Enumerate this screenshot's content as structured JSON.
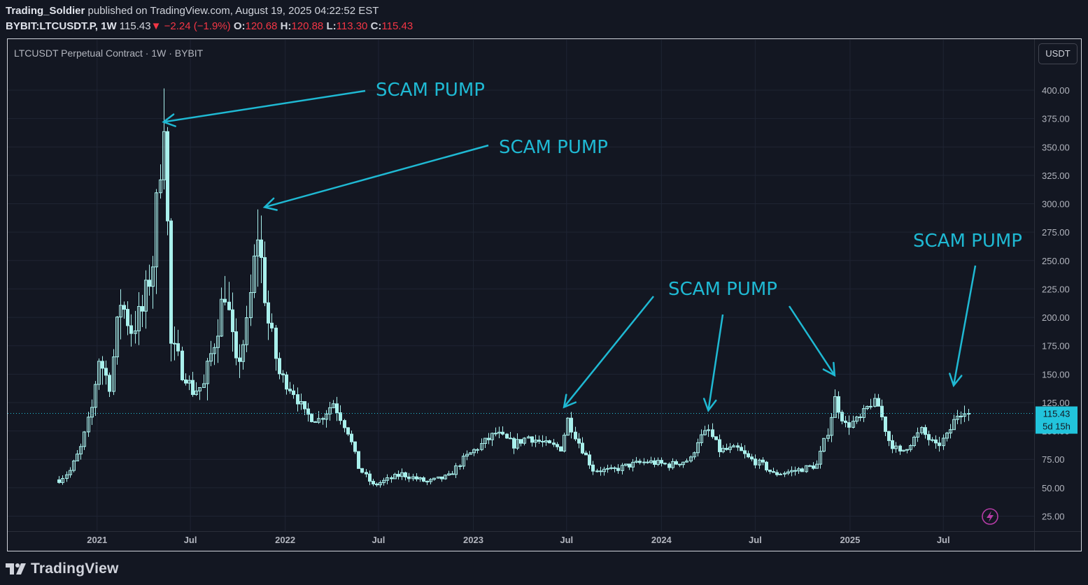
{
  "header": {
    "author": "Trading_Soldier",
    "published_text": "published on TradingView.com, August 19, 2025 04:22:52 EST",
    "symbol": "BYBIT:LTCUSDT.P, 1W",
    "last": "115.43",
    "change_arrow": "▼",
    "change": "−2.24 (−1.9%)",
    "o_label": "O:",
    "o": "120.68",
    "h_label": "H:",
    "h": "120.88",
    "l_label": "L:",
    "l": "113.30",
    "c_label": "C:",
    "c": "115.43"
  },
  "chart_legend": "LTCUSDT Perpetual Contract · 1W · BYBIT",
  "unit_button": "USDT",
  "price_label": {
    "value": "115.43",
    "countdown": "5d 15h"
  },
  "footer": {
    "brand": "TradingView"
  },
  "colors": {
    "background": "#131722",
    "candle": "#a9f0ec",
    "annotation": "#1fb9d3",
    "price_tag": "#22c4dc",
    "axis_text": "#b2b5be",
    "grid": "#1f2433",
    "bolt": "#b63ca7"
  },
  "chart_data": {
    "type": "candlestick",
    "title": "LTCUSDT Perpetual Contract · 1W · BYBIT",
    "ylim": [
      15,
      420
    ],
    "y_ticks": [
      400,
      375,
      350,
      325,
      300,
      275,
      250,
      225,
      200,
      175,
      150,
      125,
      100,
      75,
      50,
      25
    ],
    "y_tick_labels": [
      "400.00",
      "375.00",
      "350.00",
      "325.00",
      "300.00",
      "275.00",
      "250.00",
      "225.00",
      "200.00",
      "175.00",
      "150.00",
      "125.00",
      "100.00",
      "75.00",
      "50.00",
      "25.00"
    ],
    "x_ticks": [
      {
        "label": "2021",
        "date": "2021-01-01"
      },
      {
        "label": "Jul",
        "date": "2021-07-01"
      },
      {
        "label": "2022",
        "date": "2022-01-01"
      },
      {
        "label": "Jul",
        "date": "2022-07-01"
      },
      {
        "label": "2023",
        "date": "2023-01-01"
      },
      {
        "label": "Jul",
        "date": "2023-07-01"
      },
      {
        "label": "2024",
        "date": "2024-01-01"
      },
      {
        "label": "Jul",
        "date": "2024-07-01"
      },
      {
        "label": "2025",
        "date": "2025-01-01"
      },
      {
        "label": "Jul",
        "date": "2025-07-01"
      }
    ],
    "x_range": [
      "2020-10-01",
      "2025-10-20"
    ],
    "grid": true,
    "last_price": 115.43,
    "anchors": [
      {
        "date": "2020-10-19",
        "price": 57
      },
      {
        "date": "2020-11-09",
        "price": 65
      },
      {
        "date": "2020-11-30",
        "price": 85
      },
      {
        "date": "2020-12-21",
        "price": 120
      },
      {
        "date": "2021-01-04",
        "price": 165
      },
      {
        "date": "2021-01-25",
        "price": 140
      },
      {
        "date": "2021-02-15",
        "price": 215
      },
      {
        "date": "2021-03-08",
        "price": 190
      },
      {
        "date": "2021-03-29",
        "price": 205
      },
      {
        "date": "2021-04-19",
        "price": 250
      },
      {
        "date": "2021-05-10",
        "price": 385
      },
      {
        "date": "2021-05-24",
        "price": 175
      },
      {
        "date": "2021-06-14",
        "price": 155
      },
      {
        "date": "2021-07-05",
        "price": 135
      },
      {
        "date": "2021-07-26",
        "price": 140
      },
      {
        "date": "2021-08-16",
        "price": 180
      },
      {
        "date": "2021-09-06",
        "price": 225
      },
      {
        "date": "2021-09-27",
        "price": 155
      },
      {
        "date": "2021-10-18",
        "price": 190
      },
      {
        "date": "2021-11-08",
        "price": 275
      },
      {
        "date": "2021-11-29",
        "price": 195
      },
      {
        "date": "2021-12-20",
        "price": 150
      },
      {
        "date": "2022-01-17",
        "price": 135
      },
      {
        "date": "2022-02-07",
        "price": 115
      },
      {
        "date": "2022-03-07",
        "price": 110
      },
      {
        "date": "2022-04-04",
        "price": 125
      },
      {
        "date": "2022-05-02",
        "price": 100
      },
      {
        "date": "2022-05-23",
        "price": 68
      },
      {
        "date": "2022-06-20",
        "price": 52
      },
      {
        "date": "2022-08-15",
        "price": 62
      },
      {
        "date": "2022-10-03",
        "price": 55
      },
      {
        "date": "2022-11-14",
        "price": 60
      },
      {
        "date": "2022-12-12",
        "price": 75
      },
      {
        "date": "2023-01-16",
        "price": 88
      },
      {
        "date": "2023-02-13",
        "price": 98
      },
      {
        "date": "2023-03-20",
        "price": 88
      },
      {
        "date": "2023-04-17",
        "price": 95
      },
      {
        "date": "2023-05-22",
        "price": 88
      },
      {
        "date": "2023-06-19",
        "price": 85
      },
      {
        "date": "2023-07-03",
        "price": 110
      },
      {
        "date": "2023-07-24",
        "price": 90
      },
      {
        "date": "2023-08-21",
        "price": 66
      },
      {
        "date": "2023-09-25",
        "price": 65
      },
      {
        "date": "2023-10-30",
        "price": 70
      },
      {
        "date": "2023-12-04",
        "price": 73
      },
      {
        "date": "2024-01-15",
        "price": 70
      },
      {
        "date": "2024-02-26",
        "price": 75
      },
      {
        "date": "2024-03-11",
        "price": 92
      },
      {
        "date": "2024-04-01",
        "price": 100
      },
      {
        "date": "2024-04-22",
        "price": 83
      },
      {
        "date": "2024-05-27",
        "price": 84
      },
      {
        "date": "2024-06-17",
        "price": 76
      },
      {
        "date": "2024-07-15",
        "price": 70
      },
      {
        "date": "2024-08-05",
        "price": 62
      },
      {
        "date": "2024-09-16",
        "price": 65
      },
      {
        "date": "2024-10-28",
        "price": 70
      },
      {
        "date": "2024-11-18",
        "price": 100
      },
      {
        "date": "2024-12-02",
        "price": 128
      },
      {
        "date": "2024-12-23",
        "price": 105
      },
      {
        "date": "2025-01-20",
        "price": 110
      },
      {
        "date": "2025-02-10",
        "price": 125
      },
      {
        "date": "2025-02-24",
        "price": 122
      },
      {
        "date": "2025-03-17",
        "price": 92
      },
      {
        "date": "2025-04-07",
        "price": 80
      },
      {
        "date": "2025-04-28",
        "price": 90
      },
      {
        "date": "2025-05-19",
        "price": 100
      },
      {
        "date": "2025-06-16",
        "price": 86
      },
      {
        "date": "2025-07-07",
        "price": 95
      },
      {
        "date": "2025-07-28",
        "price": 115
      },
      {
        "date": "2025-08-11",
        "price": 120
      },
      {
        "date": "2025-08-18",
        "price": 115.43
      }
    ],
    "annotations": [
      {
        "text": "SCAM PUMP",
        "points_to": [
          {
            "date": "2021-05-10",
            "price": 372
          }
        ]
      },
      {
        "text": "SCAM PUMP",
        "points_to": [
          {
            "date": "2021-11-22",
            "price": 297
          }
        ]
      },
      {
        "text": "SCAM PUMP",
        "points_to": [
          {
            "date": "2023-06-26",
            "price": 121
          },
          {
            "date": "2024-04-01",
            "price": 118
          },
          {
            "date": "2024-12-02",
            "price": 149
          }
        ]
      },
      {
        "text": "SCAM PUMP",
        "points_to": [
          {
            "date": "2025-07-21",
            "price": 140
          }
        ]
      }
    ]
  }
}
